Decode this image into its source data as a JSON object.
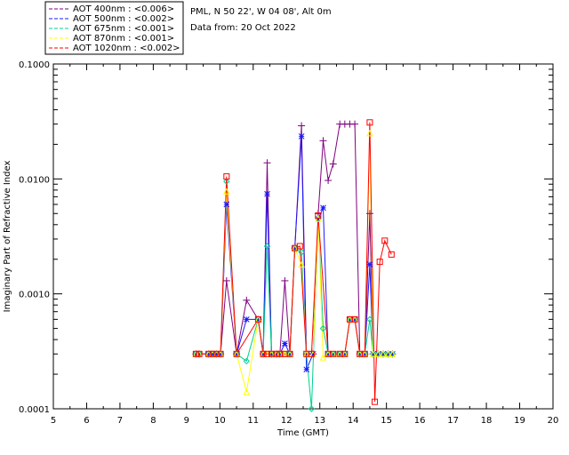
{
  "header": {
    "site_line": "PML, N 50 22', W 04 08', Alt 0m",
    "date_line": "Data from: 20 Oct 2022"
  },
  "legend": [
    {
      "label": "AOT  400nm : <0.006>",
      "color": "#800080"
    },
    {
      "label": "AOT  500nm : <0.002>",
      "color": "#1a1aff"
    },
    {
      "label": "AOT  675nm : <0.001>",
      "color": "#00d090"
    },
    {
      "label": "AOT  870nm : <0.001>",
      "color": "#ffff00"
    },
    {
      "label": "AOT 1020nm : <0.002>",
      "color": "#ff0000"
    }
  ],
  "chart_data": {
    "type": "line",
    "xlabel": "Time (GMT)",
    "ylabel": "Imaginary Part of Refractive Index",
    "xlim": [
      5,
      20
    ],
    "ylim": [
      0.0001,
      0.1
    ],
    "y_scale": "log",
    "x_ticks": [
      "5",
      "6",
      "7",
      "8",
      "9",
      "10",
      "11",
      "12",
      "13",
      "14",
      "15",
      "16",
      "17",
      "18",
      "19",
      "20"
    ],
    "y_ticks": [
      {
        "value": 0.0001,
        "label": "0.0001"
      },
      {
        "value": 0.001,
        "label": "0.0010"
      },
      {
        "value": 0.01,
        "label": "0.0100"
      },
      {
        "value": 0.1,
        "label": "0.1000"
      }
    ],
    "series": [
      {
        "name": "AOT  400nm : <0.006>",
        "color": "#800080",
        "marker": "plus",
        "points": [
          [
            9.28,
            0.0003
          ],
          [
            9.38,
            0.0003
          ],
          [
            9.66,
            0.0003
          ],
          [
            9.78,
            0.0003
          ],
          [
            9.9,
            0.0003
          ],
          [
            10.02,
            0.0003
          ],
          [
            10.2,
            0.0013
          ],
          [
            10.5,
            0.0003
          ],
          [
            10.8,
            0.00088
          ],
          [
            11.15,
            0.0006
          ],
          [
            11.3,
            0.0003
          ],
          [
            11.42,
            0.0138
          ],
          [
            11.55,
            0.0003
          ],
          [
            11.7,
            0.0003
          ],
          [
            11.8,
            0.0003
          ],
          [
            11.95,
            0.0013
          ],
          [
            12.1,
            0.0003
          ],
          [
            12.25,
            0.0025
          ],
          [
            12.45,
            0.029
          ],
          [
            12.6,
            0.0003
          ],
          [
            12.8,
            0.0003
          ],
          [
            12.95,
            0.005
          ],
          [
            13.1,
            0.0215
          ],
          [
            13.25,
            0.0097
          ],
          [
            13.4,
            0.0135
          ],
          [
            13.6,
            0.03
          ],
          [
            13.75,
            0.03
          ],
          [
            13.9,
            0.03
          ],
          [
            14.05,
            0.03
          ],
          [
            14.2,
            0.0003
          ],
          [
            14.35,
            0.0003
          ],
          [
            14.5,
            0.005
          ],
          [
            14.6,
            0.0003
          ],
          [
            14.75,
            0.0003
          ],
          [
            14.9,
            0.0003
          ],
          [
            15.05,
            0.0003
          ],
          [
            15.18,
            0.0003
          ]
        ]
      },
      {
        "name": "AOT  500nm : <0.002>",
        "color": "#1a1aff",
        "marker": "star",
        "points": [
          [
            9.28,
            0.0003
          ],
          [
            9.38,
            0.0003
          ],
          [
            9.66,
            0.0003
          ],
          [
            9.78,
            0.0003
          ],
          [
            9.9,
            0.0003
          ],
          [
            10.02,
            0.0003
          ],
          [
            10.2,
            0.006
          ],
          [
            10.5,
            0.0003
          ],
          [
            10.8,
            0.0006
          ],
          [
            11.15,
            0.0006
          ],
          [
            11.3,
            0.0003
          ],
          [
            11.42,
            0.0074
          ],
          [
            11.55,
            0.0003
          ],
          [
            11.7,
            0.0003
          ],
          [
            11.8,
            0.0003
          ],
          [
            11.95,
            0.00037
          ],
          [
            12.1,
            0.0003
          ],
          [
            12.25,
            0.0025
          ],
          [
            12.45,
            0.0235
          ],
          [
            12.6,
            0.00022
          ],
          [
            12.8,
            0.0003
          ],
          [
            12.95,
            0.0045
          ],
          [
            13.1,
            0.0056
          ],
          [
            13.25,
            0.0003
          ],
          [
            13.4,
            0.0003
          ],
          [
            13.6,
            0.0003
          ],
          [
            13.75,
            0.0003
          ],
          [
            13.9,
            0.0006
          ],
          [
            14.05,
            0.0006
          ],
          [
            14.2,
            0.0003
          ],
          [
            14.35,
            0.0003
          ],
          [
            14.5,
            0.0018
          ],
          [
            14.6,
            0.0003
          ],
          [
            14.75,
            0.0003
          ],
          [
            14.9,
            0.0003
          ],
          [
            15.05,
            0.0003
          ],
          [
            15.18,
            0.0003
          ]
        ]
      },
      {
        "name": "AOT  675nm : <0.001>",
        "color": "#00d090",
        "marker": "diamond",
        "points": [
          [
            9.28,
            0.0003
          ],
          [
            9.38,
            0.0003
          ],
          [
            9.66,
            0.0003
          ],
          [
            9.78,
            0.0003
          ],
          [
            9.9,
            0.0003
          ],
          [
            10.02,
            0.0003
          ],
          [
            10.2,
            0.0095
          ],
          [
            10.5,
            0.0003
          ],
          [
            10.8,
            0.00026
          ],
          [
            11.15,
            0.0006
          ],
          [
            11.3,
            0.0003
          ],
          [
            11.42,
            0.0026
          ],
          [
            11.55,
            0.0003
          ],
          [
            11.7,
            0.0003
          ],
          [
            11.8,
            0.0003
          ],
          [
            11.95,
            0.0003
          ],
          [
            12.1,
            0.0003
          ],
          [
            12.25,
            0.0025
          ],
          [
            12.45,
            0.0023
          ],
          [
            12.6,
            0.0003
          ],
          [
            12.75,
            0.0001
          ],
          [
            12.95,
            0.0045
          ],
          [
            13.1,
            0.0005
          ],
          [
            13.25,
            0.0003
          ],
          [
            13.4,
            0.0003
          ],
          [
            13.6,
            0.0003
          ],
          [
            13.75,
            0.0003
          ],
          [
            13.9,
            0.0006
          ],
          [
            14.05,
            0.0006
          ],
          [
            14.2,
            0.0003
          ],
          [
            14.35,
            0.0003
          ],
          [
            14.5,
            0.0006
          ],
          [
            14.6,
            0.0003
          ],
          [
            14.75,
            0.0003
          ],
          [
            14.9,
            0.0003
          ],
          [
            15.05,
            0.0003
          ],
          [
            15.18,
            0.0003
          ]
        ]
      },
      {
        "name": "AOT  870nm : <0.001>",
        "color": "#ffff00",
        "marker": "triangle",
        "points": [
          [
            9.28,
            0.0003
          ],
          [
            9.38,
            0.0003
          ],
          [
            9.66,
            0.0003
          ],
          [
            9.78,
            0.0003
          ],
          [
            9.9,
            0.0003
          ],
          [
            10.02,
            0.0003
          ],
          [
            10.2,
            0.0078
          ],
          [
            10.5,
            0.0003
          ],
          [
            10.8,
            0.00014
          ],
          [
            11.15,
            0.0006
          ],
          [
            11.3,
            0.0003
          ],
          [
            11.42,
            0.0003
          ],
          [
            11.55,
            0.0003
          ],
          [
            11.7,
            0.0003
          ],
          [
            11.8,
            0.0003
          ],
          [
            11.95,
            0.0003
          ],
          [
            12.1,
            0.0003
          ],
          [
            12.25,
            0.0025
          ],
          [
            12.45,
            0.0018
          ],
          [
            12.6,
            0.0003
          ],
          [
            12.8,
            0.0003
          ],
          [
            12.95,
            0.0045
          ],
          [
            13.1,
            0.00028
          ],
          [
            13.25,
            0.0003
          ],
          [
            13.4,
            0.0003
          ],
          [
            13.6,
            0.0003
          ],
          [
            13.75,
            0.0003
          ],
          [
            13.9,
            0.0006
          ],
          [
            14.05,
            0.0006
          ],
          [
            14.2,
            0.0003
          ],
          [
            14.35,
            0.0003
          ],
          [
            14.5,
            0.025
          ],
          [
            14.6,
            0.0003
          ],
          [
            14.75,
            0.0003
          ],
          [
            14.9,
            0.0003
          ],
          [
            15.05,
            0.0003
          ],
          [
            15.18,
            0.0003
          ]
        ]
      },
      {
        "name": "AOT 1020nm : <0.002>",
        "color": "#ff0000",
        "marker": "square",
        "points": [
          [
            9.28,
            0.0003
          ],
          [
            9.38,
            0.0003
          ],
          [
            9.66,
            0.0003
          ],
          [
            9.78,
            0.0003
          ],
          [
            9.9,
            0.0003
          ],
          [
            10.02,
            0.0003
          ],
          [
            10.2,
            0.0105
          ],
          [
            10.5,
            0.0003
          ],
          [
            11.15,
            0.0006
          ],
          [
            11.3,
            0.0003
          ],
          [
            11.42,
            0.0003
          ],
          [
            11.55,
            0.0003
          ],
          [
            11.7,
            0.0003
          ],
          [
            11.8,
            0.0003
          ],
          [
            11.95,
            0.0003
          ],
          [
            12.1,
            0.0003
          ],
          [
            12.25,
            0.0025
          ],
          [
            12.4,
            0.0026
          ],
          [
            12.6,
            0.0003
          ],
          [
            12.75,
            0.0003
          ],
          [
            12.95,
            0.0048
          ],
          [
            13.25,
            0.0003
          ],
          [
            13.4,
            0.0003
          ],
          [
            13.6,
            0.0003
          ],
          [
            13.75,
            0.0003
          ],
          [
            13.9,
            0.0006
          ],
          [
            14.05,
            0.0006
          ],
          [
            14.2,
            0.0003
          ],
          [
            14.35,
            0.0003
          ],
          [
            14.5,
            0.031
          ],
          [
            14.65,
            0.000115
          ],
          [
            14.8,
            0.0019
          ],
          [
            14.95,
            0.0029
          ],
          [
            15.15,
            0.0022
          ]
        ]
      }
    ]
  }
}
